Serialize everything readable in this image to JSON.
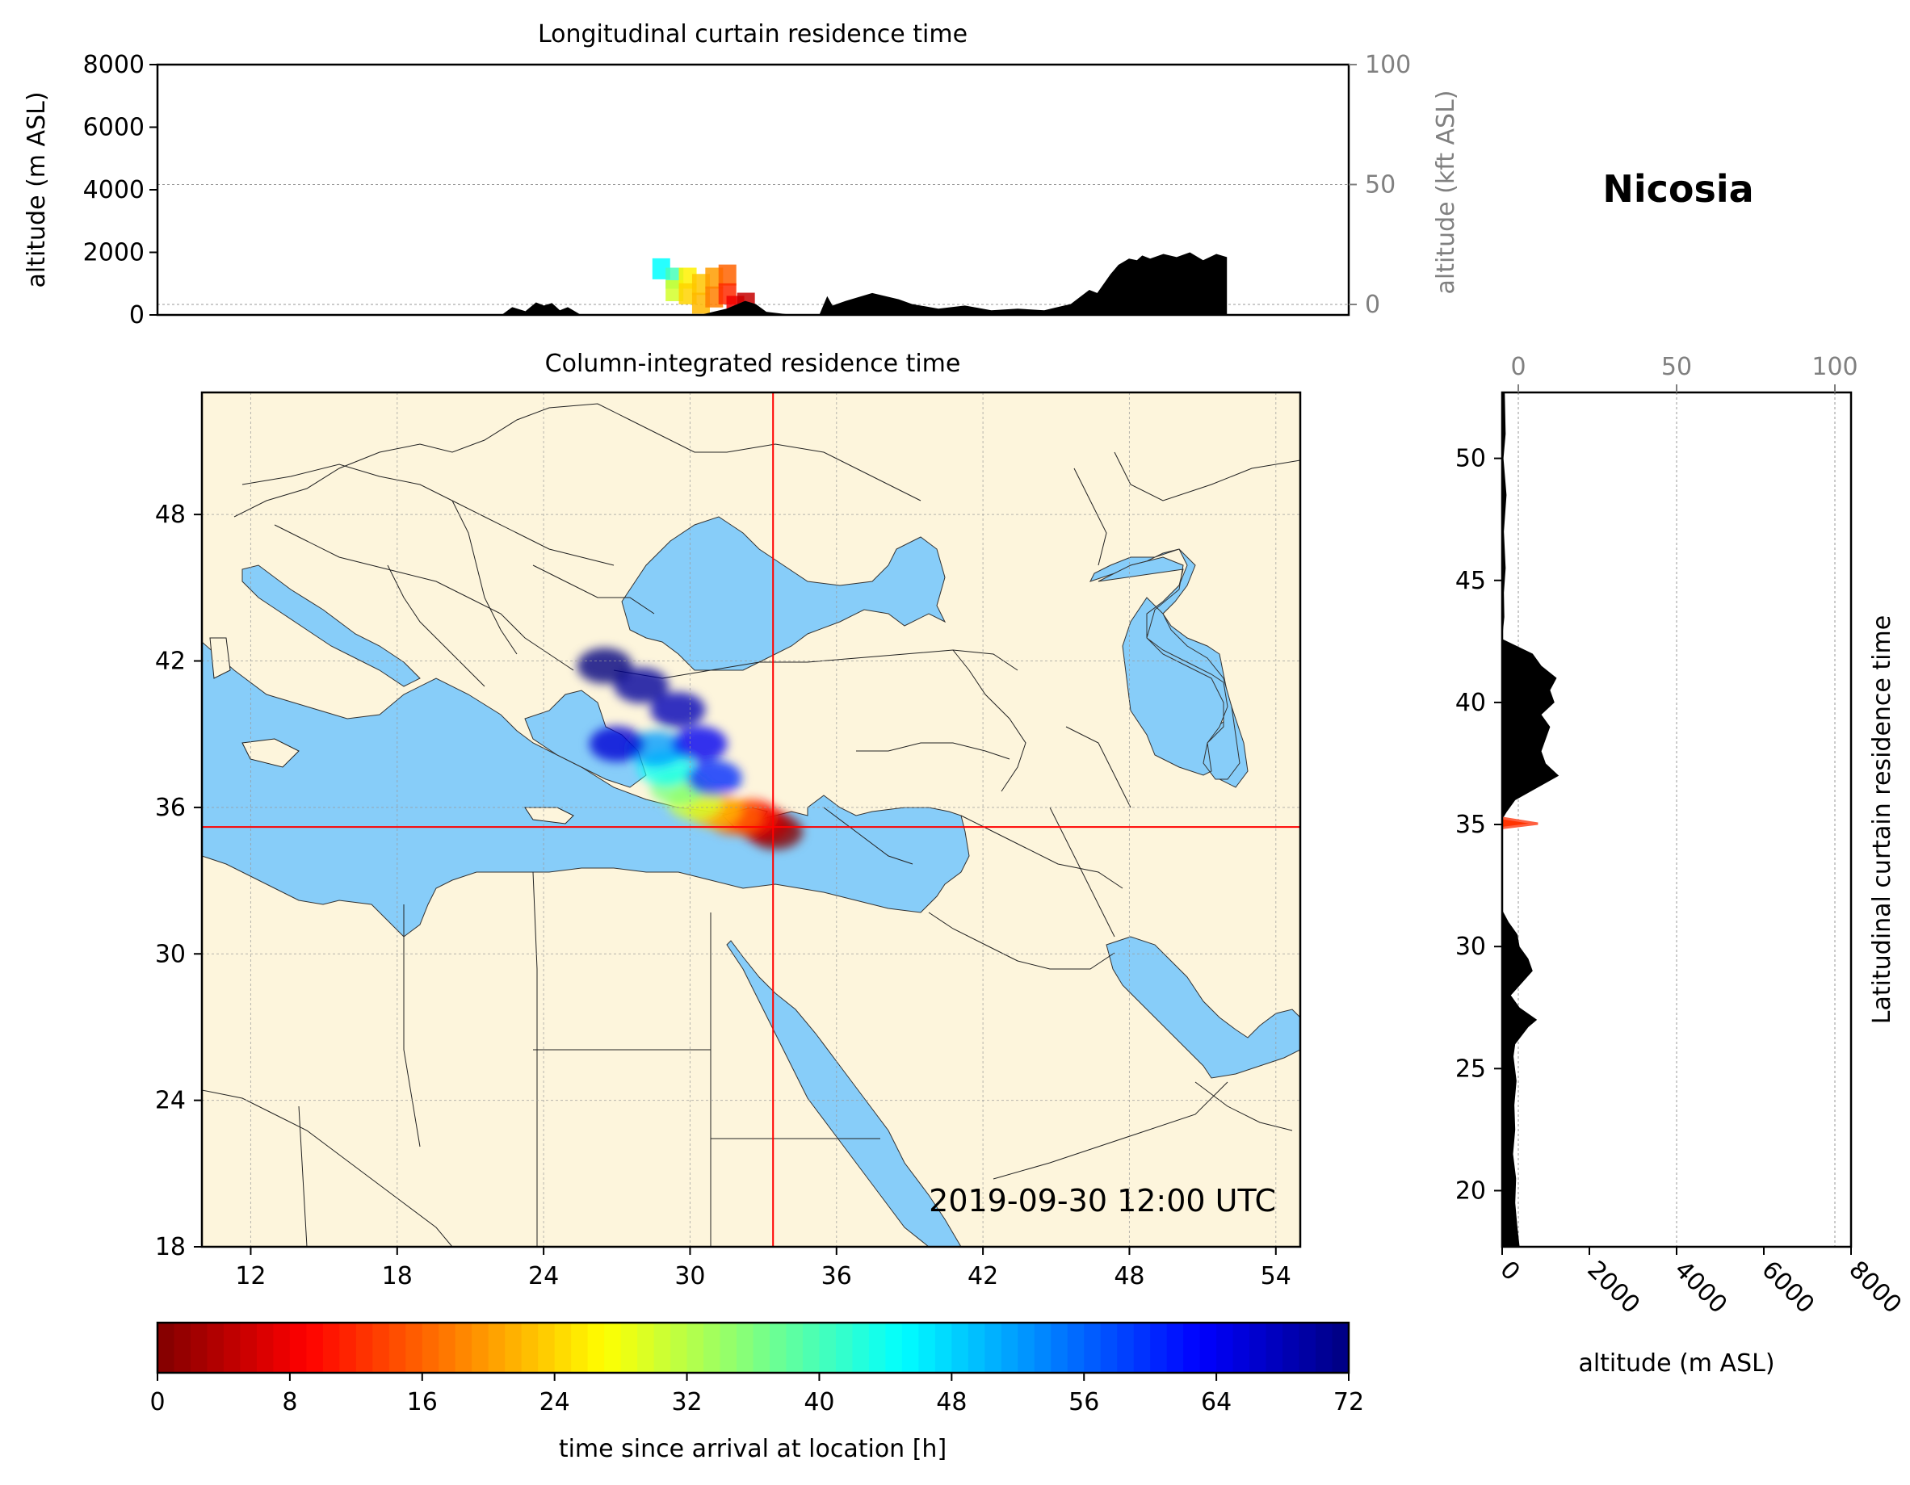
{
  "location": {
    "name": "Nicosia",
    "lon": 33.4,
    "lat": 35.2
  },
  "timestamp": "2019-09-30 12:00 UTC",
  "colors": {
    "land": "#fdf5dc",
    "water": "#87cdf9",
    "terrain": "#000000",
    "crosshair": "#ff0000",
    "grid": "#999999"
  },
  "chart_data": [
    {
      "type": "area",
      "title": "Longitudinal curtain residence time",
      "xlim": [
        11,
        56
      ],
      "ylim": [
        0,
        8000
      ],
      "ylabel": "altitude (m ASL)",
      "yticks": [
        0,
        2000,
        4000,
        6000,
        8000
      ],
      "ylabel2": "altitude (kft ASL)",
      "yticks2": [
        0,
        50,
        100
      ],
      "terrain_profile": {
        "x": [
          24.0,
          24.4,
          24.9,
          25.3,
          25.6,
          25.9,
          26.2,
          26.5,
          27.0,
          31.0,
          31.5,
          32.5,
          33.2,
          33.6,
          34.0,
          35.0,
          36.0,
          36.3,
          36.5,
          37.0,
          38.0,
          39.0,
          39.5,
          40.5,
          41.5,
          42.5,
          43.5,
          44.5,
          45.5,
          46.2,
          46.5,
          47.0,
          47.3,
          47.7,
          48.0,
          48.2,
          48.5,
          49.0,
          49.5,
          50.0,
          50.5,
          51.0,
          51.4
        ],
        "y": [
          0,
          250,
          120,
          400,
          300,
          380,
          150,
          250,
          0,
          0,
          0,
          200,
          450,
          350,
          100,
          0,
          0,
          600,
          300,
          450,
          700,
          500,
          350,
          200,
          300,
          150,
          200,
          150,
          350,
          800,
          700,
          1300,
          1600,
          1800,
          1750,
          1900,
          1800,
          1950,
          1850,
          2000,
          1750,
          1950,
          1850
        ]
      },
      "plume_cells": [
        {
          "lon": 30.0,
          "alt": 1500,
          "hours": 45
        },
        {
          "lon": 30.5,
          "alt": 1200,
          "hours": 40
        },
        {
          "lon": 30.5,
          "alt": 800,
          "hours": 30
        },
        {
          "lon": 31.0,
          "alt": 1200,
          "hours": 26
        },
        {
          "lon": 31.0,
          "alt": 700,
          "hours": 24
        },
        {
          "lon": 31.5,
          "alt": 1000,
          "hours": 23
        },
        {
          "lon": 31.5,
          "alt": 400,
          "hours": 22
        },
        {
          "lon": 32.0,
          "alt": 1200,
          "hours": 20
        },
        {
          "lon": 32.0,
          "alt": 600,
          "hours": 18
        },
        {
          "lon": 32.5,
          "alt": 1300,
          "hours": 16
        },
        {
          "lon": 32.5,
          "alt": 700,
          "hours": 12
        },
        {
          "lon": 32.8,
          "alt": 300,
          "hours": 8
        },
        {
          "lon": 33.2,
          "alt": 400,
          "hours": 5
        }
      ]
    },
    {
      "type": "heatmap",
      "title": "Column-integrated residence time",
      "xlim": [
        10,
        55
      ],
      "ylim": [
        18,
        53
      ],
      "xticks": [
        12,
        18,
        24,
        30,
        36,
        42,
        48,
        54
      ],
      "yticks": [
        18,
        24,
        30,
        36,
        42,
        48
      ],
      "plume_points": [
        {
          "lon": 33.5,
          "lat": 35.0,
          "hours": 0
        },
        {
          "lon": 33.0,
          "lat": 35.3,
          "hours": 4
        },
        {
          "lon": 32.5,
          "lat": 35.6,
          "hours": 10
        },
        {
          "lon": 31.8,
          "lat": 35.6,
          "hours": 16
        },
        {
          "lon": 31.0,
          "lat": 35.9,
          "hours": 22
        },
        {
          "lon": 30.2,
          "lat": 36.2,
          "hours": 30
        },
        {
          "lon": 29.5,
          "lat": 36.8,
          "hours": 36
        },
        {
          "lon": 29.0,
          "lat": 37.6,
          "hours": 44
        },
        {
          "lon": 28.6,
          "lat": 38.4,
          "hours": 52
        },
        {
          "lon": 31.0,
          "lat": 37.2,
          "hours": 60
        },
        {
          "lon": 30.4,
          "lat": 38.6,
          "hours": 64
        },
        {
          "lon": 29.5,
          "lat": 40.0,
          "hours": 68
        },
        {
          "lon": 28.0,
          "lat": 41.0,
          "hours": 70
        },
        {
          "lon": 26.5,
          "lat": 41.8,
          "hours": 72
        },
        {
          "lon": 27.0,
          "lat": 38.6,
          "hours": 66
        }
      ]
    },
    {
      "type": "area",
      "title": "Latitudinal curtain residence time",
      "xlim": [
        0,
        8000
      ],
      "xlabel": "altitude (m ASL)",
      "xticks": [
        0,
        2000,
        4000,
        6000,
        8000
      ],
      "xlabel2": "",
      "xticks2": [
        0,
        50,
        100
      ],
      "ylim": [
        17.7,
        52.7
      ],
      "yticks": [
        20,
        25,
        30,
        35,
        40,
        45,
        50
      ],
      "terrain_profile": {
        "lat": [
          17.7,
          18.5,
          19.5,
          20.5,
          21.5,
          22.5,
          23.5,
          24.5,
          25.5,
          26.0,
          26.7,
          27.0,
          27.5,
          28.0,
          29.0,
          29.5,
          30.0,
          30.5,
          31.0,
          31.5,
          35.2,
          35.5,
          36.0,
          36.5,
          37.0,
          37.5,
          38.0,
          38.5,
          39.0,
          39.5,
          40.0,
          40.5,
          41.0,
          41.5,
          42.0,
          42.3,
          42.6,
          43.5,
          44.5,
          45.5,
          47.0,
          48.5,
          50.0,
          51.0,
          52.7
        ],
        "alt": [
          400,
          350,
          300,
          320,
          250,
          300,
          280,
          330,
          260,
          300,
          600,
          800,
          400,
          200,
          700,
          600,
          400,
          350,
          150,
          0,
          0,
          100,
          300,
          800,
          1300,
          1000,
          900,
          1000,
          1100,
          900,
          1200,
          1100,
          1250,
          900,
          700,
          350,
          0,
          50,
          40,
          80,
          40,
          100,
          30,
          80,
          60
        ]
      },
      "plume_point": {
        "lat": 35.1,
        "alt": 300,
        "hours": 3
      }
    },
    {
      "type": "heatmap",
      "colorbar": true,
      "xlabel": "time since arrival at location [h]",
      "range": [
        0,
        72
      ],
      "ticks": [
        0,
        8,
        16,
        24,
        32,
        40,
        48,
        56,
        64,
        72
      ],
      "colormap": "jet_r"
    }
  ]
}
